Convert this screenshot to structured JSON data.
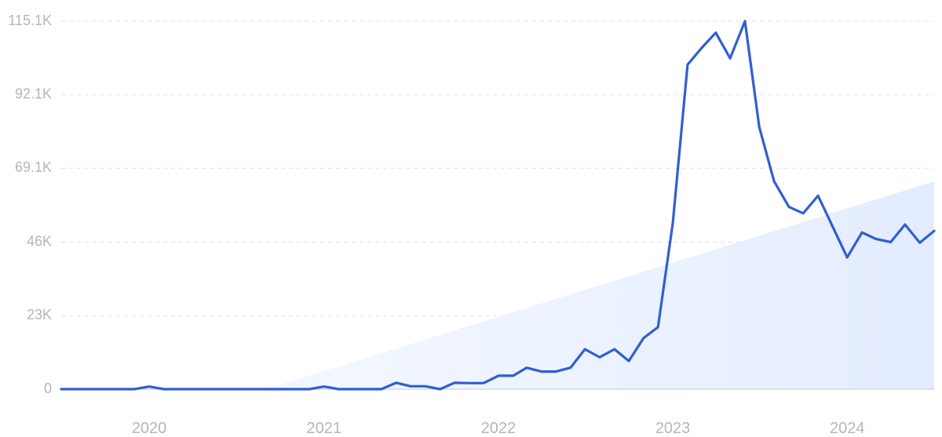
{
  "chart_data": {
    "type": "line",
    "title": "",
    "xlabel": "",
    "ylabel": "",
    "colors": {
      "line": "#2f5fd3",
      "trend_fill": "#e6efff"
    },
    "y_ticks": [
      "0",
      "23K",
      "46K",
      "69.1K",
      "92.1K",
      "115.1K"
    ],
    "y_tick_values": [
      0,
      23000,
      46000,
      69100,
      92100,
      115100
    ],
    "ylim": [
      0,
      115100
    ],
    "x_ticks": [
      "2020",
      "2021",
      "2022",
      "2023",
      "2024"
    ],
    "x_tick_dates": [
      "2020-01-01",
      "2021-01-01",
      "2022-01-01",
      "2023-01-01",
      "2024-01-01"
    ],
    "xlim": [
      "2019-07-01",
      "2024-07-01"
    ],
    "grid": true,
    "legend": "none",
    "trend": {
      "start_date": "2020-09-01",
      "start_value": 0,
      "end_date": "2024-07-01",
      "end_value": 65000
    },
    "series": [
      {
        "x": [
          "2019-07-01",
          "2019-08-01",
          "2019-09-01",
          "2019-10-01",
          "2019-11-01",
          "2019-12-01",
          "2020-01-01",
          "2020-02-01",
          "2020-03-01",
          "2020-04-01",
          "2020-05-01",
          "2020-06-01",
          "2020-07-01",
          "2020-08-01",
          "2020-09-01",
          "2020-10-01",
          "2020-11-01",
          "2020-12-01",
          "2021-01-01",
          "2021-02-01",
          "2021-03-01",
          "2021-04-01",
          "2021-05-01",
          "2021-06-01",
          "2021-07-01",
          "2021-08-01",
          "2021-09-01",
          "2021-10-01",
          "2021-11-01",
          "2021-12-01",
          "2022-01-01",
          "2022-02-01",
          "2022-03-01",
          "2022-04-01",
          "2022-05-01",
          "2022-06-01",
          "2022-07-01",
          "2022-08-01",
          "2022-09-01",
          "2022-10-01",
          "2022-11-01",
          "2022-12-01",
          "2023-01-01",
          "2023-02-01",
          "2023-03-01",
          "2023-04-01",
          "2023-05-01",
          "2023-06-01",
          "2023-07-01",
          "2023-08-01",
          "2023-09-01",
          "2023-10-01",
          "2023-11-01",
          "2023-12-01",
          "2024-01-01",
          "2024-02-01",
          "2024-03-01",
          "2024-04-01",
          "2024-05-01",
          "2024-06-01",
          "2024-07-01"
        ],
        "values": [
          0,
          0,
          0,
          0,
          0,
          0,
          800,
          0,
          0,
          0,
          0,
          0,
          0,
          0,
          0,
          0,
          0,
          0,
          800,
          0,
          0,
          0,
          0,
          2000,
          900,
          900,
          0,
          2000,
          1900,
          1900,
          4200,
          4200,
          6700,
          5500,
          5500,
          6700,
          12500,
          10000,
          12500,
          8800,
          16000,
          19400,
          52000,
          101500,
          106500,
          111500,
          103500,
          115100,
          82000,
          65000,
          57000,
          55000,
          60500,
          51000,
          41200,
          49000,
          47000,
          46000,
          51500,
          45800,
          49500
        ]
      }
    ]
  }
}
